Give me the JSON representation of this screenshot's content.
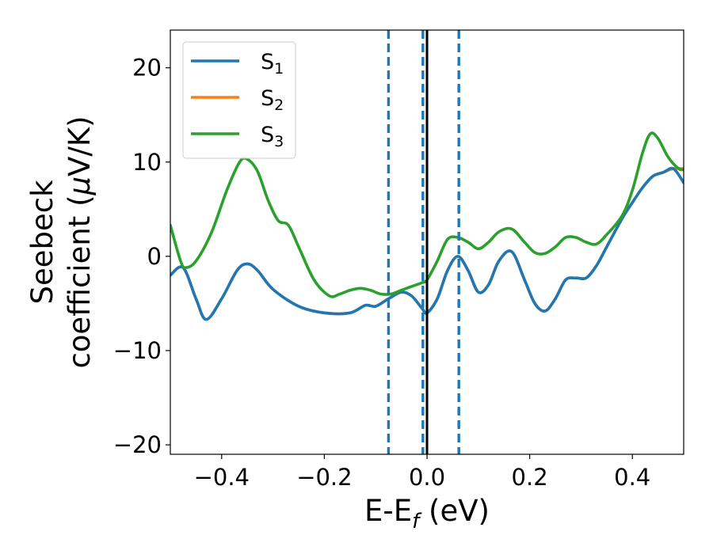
{
  "chart_data": {
    "type": "line",
    "xlabel_main": "E-E",
    "xlabel_sub": "f",
    "xlabel_unit": " (eV)",
    "ylabel_line1": "Seebeck",
    "ylabel_line2_prefix": "coefficient  (",
    "ylabel_line2_mu": "μ",
    "ylabel_line2_suffix": "V/K)",
    "xlim": [
      -0.5,
      0.5
    ],
    "ylim": [
      -21,
      24
    ],
    "x_ticks": [
      -0.4,
      -0.2,
      0.0,
      0.2,
      0.4
    ],
    "x_tick_labels": [
      "−0.4",
      "−0.2",
      "0.0",
      "0.2",
      "0.4"
    ],
    "y_ticks": [
      -20,
      -10,
      0,
      10,
      20
    ],
    "y_tick_labels": [
      "−20",
      "−10",
      "0",
      "10",
      "20"
    ],
    "legend_placement": "top-left",
    "grid": false,
    "vlines_dashed": [
      -0.075,
      -0.008,
      0.062
    ],
    "vline_solid": 0.0,
    "series": [
      {
        "name_main": "S",
        "name_sub": "1",
        "color": "#1f77b4",
        "x": [
          -0.5,
          -0.475,
          -0.45,
          -0.43,
          -0.4,
          -0.37,
          -0.35,
          -0.33,
          -0.3,
          -0.25,
          -0.2,
          -0.15,
          -0.12,
          -0.1,
          -0.075,
          -0.05,
          -0.03,
          -0.01,
          0.0,
          0.02,
          0.04,
          0.06,
          0.08,
          0.1,
          0.12,
          0.14,
          0.165,
          0.19,
          0.21,
          0.23,
          0.25,
          0.27,
          0.29,
          0.31,
          0.33,
          0.35,
          0.38,
          0.4,
          0.42,
          0.44,
          0.46,
          0.48,
          0.5
        ],
        "y": [
          -2.0,
          -1.2,
          -4.5,
          -6.7,
          -4.5,
          -1.5,
          -0.8,
          -1.5,
          -3.5,
          -5.3,
          -6.0,
          -6.0,
          -5.2,
          -5.3,
          -4.5,
          -3.8,
          -4.2,
          -5.5,
          -6.0,
          -4.5,
          -1.5,
          0.0,
          -1.5,
          -3.8,
          -3.0,
          -0.5,
          0.5,
          -2.5,
          -5.0,
          -5.8,
          -4.5,
          -2.5,
          -2.3,
          -2.3,
          -1.0,
          1.0,
          4.0,
          5.7,
          7.3,
          8.5,
          8.9,
          9.3,
          7.8
        ]
      },
      {
        "name_main": "S",
        "name_sub": "2",
        "color": "#ff7f0e",
        "x": [
          -0.5,
          -0.475,
          -0.45,
          -0.43,
          -0.4,
          -0.37,
          -0.35,
          -0.33,
          -0.3,
          -0.25,
          -0.2,
          -0.15,
          -0.12,
          -0.1,
          -0.075,
          -0.05,
          -0.03,
          -0.01,
          0.0,
          0.02,
          0.04,
          0.06,
          0.08,
          0.1,
          0.12,
          0.14,
          0.165,
          0.19,
          0.21,
          0.23,
          0.25,
          0.27,
          0.29,
          0.31,
          0.33,
          0.35,
          0.38,
          0.4,
          0.42,
          0.44,
          0.46,
          0.48,
          0.5
        ],
        "y": [
          -2.0,
          -1.2,
          -4.5,
          -6.7,
          -4.5,
          -1.5,
          -0.8,
          -1.5,
          -3.5,
          -5.3,
          -6.0,
          -6.0,
          -5.2,
          -5.3,
          -4.5,
          -3.8,
          -4.2,
          -5.5,
          -6.0,
          -4.5,
          -1.5,
          0.0,
          -1.5,
          -3.8,
          -3.0,
          -0.5,
          0.5,
          -2.5,
          -5.0,
          -5.8,
          -4.5,
          -2.5,
          -2.3,
          -2.3,
          -1.0,
          1.0,
          4.0,
          5.7,
          7.3,
          8.5,
          8.9,
          9.3,
          9.3
        ]
      },
      {
        "name_main": "S",
        "name_sub": "3",
        "color": "#2ca02c",
        "x": [
          -0.5,
          -0.48,
          -0.47,
          -0.45,
          -0.42,
          -0.39,
          -0.365,
          -0.35,
          -0.33,
          -0.31,
          -0.29,
          -0.27,
          -0.25,
          -0.22,
          -0.19,
          -0.17,
          -0.15,
          -0.13,
          -0.11,
          -0.09,
          -0.07,
          -0.05,
          -0.03,
          -0.01,
          0.0,
          0.02,
          0.04,
          0.06,
          0.08,
          0.1,
          0.12,
          0.14,
          0.165,
          0.19,
          0.21,
          0.23,
          0.25,
          0.27,
          0.29,
          0.31,
          0.33,
          0.35,
          0.38,
          0.4,
          0.42,
          0.435,
          0.45,
          0.47,
          0.49,
          0.5
        ],
        "y": [
          3.3,
          -0.5,
          -1.2,
          -0.5,
          2.5,
          7.0,
          10.0,
          10.3,
          9.0,
          6.0,
          3.8,
          3.3,
          1.0,
          -2.5,
          -4.2,
          -4.0,
          -3.6,
          -3.4,
          -3.6,
          -4.0,
          -4.0,
          -3.6,
          -3.2,
          -2.8,
          -2.5,
          -0.5,
          1.8,
          2.0,
          1.5,
          0.8,
          1.5,
          2.6,
          2.9,
          1.5,
          0.4,
          0.3,
          1.0,
          2.0,
          2.0,
          1.5,
          1.3,
          2.3,
          4.3,
          7.0,
          11.0,
          13.0,
          12.5,
          10.5,
          9.3,
          9.2
        ]
      }
    ]
  }
}
